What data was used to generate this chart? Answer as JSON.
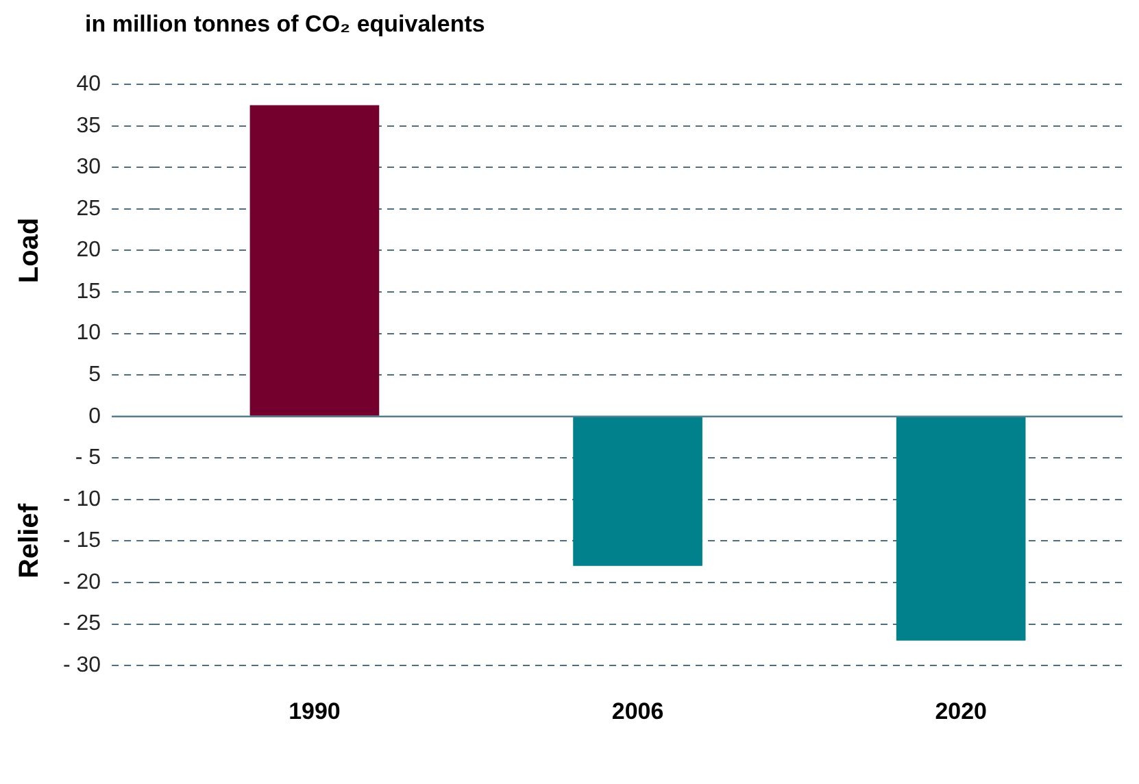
{
  "chart_data": {
    "type": "bar",
    "title": "in million tonnes of CO₂ equivalents",
    "categories": [
      "1990",
      "2006",
      "2020"
    ],
    "values": [
      37.5,
      -18,
      -27
    ],
    "colors": [
      "#74002e",
      "#00818c",
      "#00818c"
    ],
    "ylim": [
      -30,
      40
    ],
    "yticks": [
      {
        "value": -30,
        "label": "- 30"
      },
      {
        "value": -25,
        "label": "- 25"
      },
      {
        "value": -20,
        "label": "- 20"
      },
      {
        "value": -15,
        "label": "- 15"
      },
      {
        "value": -10,
        "label": "- 10"
      },
      {
        "value": -5,
        "label": "- 5"
      },
      0,
      5,
      10,
      15,
      20,
      25,
      30,
      35,
      40
    ],
    "grid": "y",
    "ref_lines": [
      {
        "axis": "y",
        "value": 0,
        "color": "#4f7f8f"
      }
    ],
    "annotations": [
      "Load",
      "Relief"
    ]
  }
}
